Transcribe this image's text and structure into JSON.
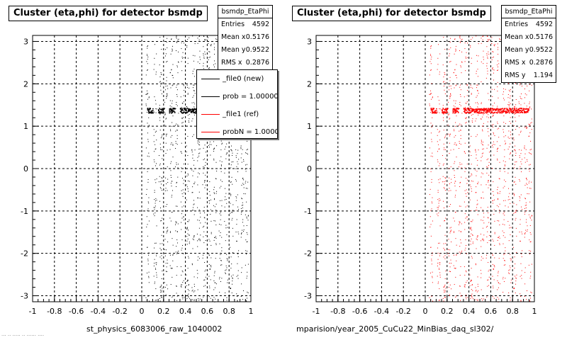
{
  "footnote": "... .. ..... .. ...... ....",
  "chart_data": [
    {
      "type": "scatter",
      "title": "Cluster (eta,phi) for detector bsmdp",
      "xlabel": "st_physics_6083006_raw_1040002",
      "xlim": [
        -1,
        1
      ],
      "ylim": [
        -3.1416,
        3.1416
      ],
      "x_ticks": [
        "-1",
        "-0.8",
        "-0.6",
        "-0.4",
        "-0.2",
        "0",
        "0.2",
        "0.4",
        "0.6",
        "0.8",
        "1"
      ],
      "y_ticks": [
        "-3",
        "-2",
        "-1",
        "0",
        "1",
        "2",
        "3"
      ],
      "grid": true,
      "marker_color": "#000000",
      "stats": {
        "name": "bsmdp_EtaPhi",
        "entries_label": "Entries",
        "entries": "4592",
        "mean_x_label": "Mean x",
        "mean_x": "0.5176",
        "mean_y_label": "Mean y",
        "mean_y": "0.9522",
        "rms_x_label": "RMS x",
        "rms_x": "0.2876"
      },
      "legend": [
        {
          "label": "_file0 (new)",
          "color": "#000000"
        },
        {
          "label": "prob = 1.000000",
          "color": "#000000"
        },
        {
          "label": "_file1 (ref)",
          "color": "#ff0000"
        },
        {
          "label": "probN = 1.000000",
          "color": "#ff0000"
        }
      ],
      "legend_placement": "top-right",
      "dense_band": {
        "y": 1.38,
        "x_ranges": [
          [
            0.05,
            0.1
          ],
          [
            0.15,
            0.2
          ],
          [
            0.25,
            0.3
          ],
          [
            0.35,
            0.95
          ]
        ]
      },
      "scatter_columns_x": [
        0.05,
        0.12,
        0.17,
        0.22,
        0.27,
        0.32,
        0.37,
        0.42,
        0.47,
        0.52,
        0.57,
        0.62,
        0.67,
        0.72,
        0.77,
        0.82,
        0.87,
        0.92,
        0.96
      ]
    },
    {
      "type": "scatter",
      "title": "Cluster (eta,phi) for detector bsmdp",
      "xlabel": "mparision/year_2005_CuCu22_MinBias_daq_sl302/",
      "xlim": [
        -1,
        1
      ],
      "ylim": [
        -3.1416,
        3.1416
      ],
      "x_ticks": [
        "-1",
        "-0.8",
        "-0.6",
        "-0.4",
        "-0.2",
        "0",
        "0.2",
        "0.4",
        "0.6",
        "0.8",
        "1"
      ],
      "y_ticks": [
        "-3",
        "-2",
        "-1",
        "0",
        "1",
        "2",
        "3"
      ],
      "grid": true,
      "marker_color": "#ff0000",
      "stats": {
        "name": "bsmdp_EtaPhi",
        "entries_label": "Entries",
        "entries": "4592",
        "mean_x_label": "Mean x",
        "mean_x": "0.5176",
        "mean_y_label": "Mean y",
        "mean_y": "0.9522",
        "rms_x_label": "RMS x",
        "rms_x": "0.2876",
        "rms_y_label": "RMS y",
        "rms_y": "1.194"
      },
      "dense_band": {
        "y": 1.38,
        "x_ranges": [
          [
            0.05,
            0.1
          ],
          [
            0.15,
            0.2
          ],
          [
            0.25,
            0.3
          ],
          [
            0.35,
            0.95
          ]
        ]
      },
      "scatter_columns_x": [
        0.05,
        0.12,
        0.17,
        0.22,
        0.27,
        0.32,
        0.37,
        0.42,
        0.47,
        0.52,
        0.57,
        0.62,
        0.67,
        0.72,
        0.77,
        0.82,
        0.87,
        0.92,
        0.96
      ]
    }
  ]
}
